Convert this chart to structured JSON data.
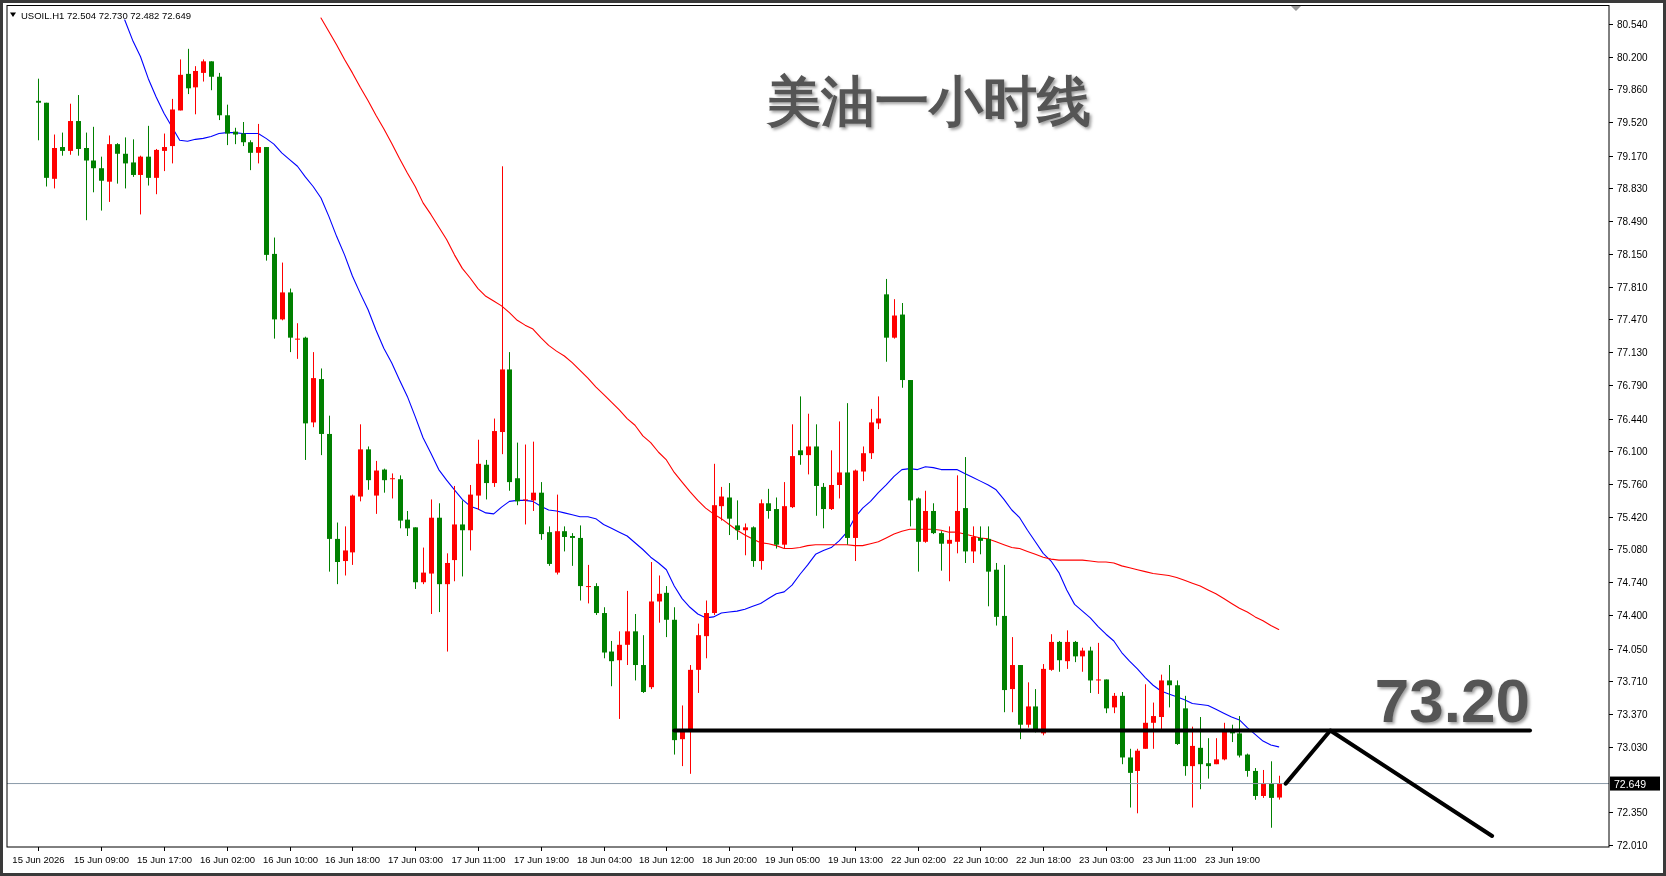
{
  "chart_data": {
    "type": "candlestick",
    "title": "美油一小时线",
    "subtitle": "USOIL.H1 72.504 72.730 72.482 72.649",
    "categories": [
      "15 Jun 2026",
      null,
      null,
      null,
      null,
      null,
      null,
      null,
      "15 Jun 09:00",
      null,
      null,
      null,
      null,
      null,
      null,
      null,
      "15 Jun 17:00",
      null,
      null,
      null,
      null,
      null,
      null,
      null,
      "16 Jun 02:00",
      null,
      null,
      null,
      null,
      null,
      null,
      null,
      "16 Jun 10:00",
      null,
      null,
      null,
      null,
      null,
      null,
      null,
      "16 Jun 18:00",
      null,
      null,
      null,
      null,
      null,
      null,
      null,
      "17 Jun 03:00",
      null,
      null,
      null,
      null,
      null,
      null,
      null,
      "17 Jun 11:00",
      null,
      null,
      null,
      null,
      null,
      null,
      null,
      "17 Jun 19:00",
      null,
      null,
      null,
      null,
      null,
      null,
      null,
      "18 Jun 04:00",
      null,
      null,
      null,
      null,
      null,
      null,
      null,
      "18 Jun 12:00",
      null,
      null,
      null,
      null,
      null,
      null,
      null,
      "18 Jun 20:00",
      null,
      null,
      null,
      null,
      null,
      null,
      null,
      "19 Jun 05:00",
      null,
      null,
      null,
      null,
      null,
      null,
      null,
      "19 Jun 13:00",
      null,
      null,
      null,
      null,
      null,
      null,
      null,
      "22 Jun 02:00",
      null,
      null,
      null,
      null,
      null,
      null,
      null,
      "22 Jun 10:00",
      null,
      null,
      null,
      null,
      null,
      null,
      null,
      "22 Jun 18:00",
      null,
      null,
      null,
      null,
      null,
      null,
      null,
      "23 Jun 03:00",
      null,
      null,
      null,
      null,
      null,
      null,
      null,
      "23 Jun 11:00",
      null,
      null,
      null,
      null,
      null,
      null,
      null,
      "23 Jun 19:00",
      null,
      null,
      null,
      null,
      null,
      null
    ],
    "ylim": [
      71.99,
      80.73
    ],
    "yticks": [
      {
        "value": 80.54,
        "label": "80.540"
      },
      {
        "value": 80.2,
        "label": "80.200"
      },
      {
        "value": 79.86,
        "label": "79.860"
      },
      {
        "value": 79.52,
        "label": "79.520"
      },
      {
        "value": 79.17,
        "label": "79.170"
      },
      {
        "value": 78.83,
        "label": "78.830"
      },
      {
        "value": 78.49,
        "label": "78.490"
      },
      {
        "value": 78.15,
        "label": "78.150"
      },
      {
        "value": 77.81,
        "label": "77.810"
      },
      {
        "value": 77.47,
        "label": "77.470"
      },
      {
        "value": 77.13,
        "label": "77.130"
      },
      {
        "value": 76.79,
        "label": "76.790"
      },
      {
        "value": 76.44,
        "label": "76.440"
      },
      {
        "value": 76.1,
        "label": "76.100"
      },
      {
        "value": 75.76,
        "label": "75.760"
      },
      {
        "value": 75.42,
        "label": "75.420"
      },
      {
        "value": 75.08,
        "label": "75.080"
      },
      {
        "value": 74.74,
        "label": "74.740"
      },
      {
        "value": 74.4,
        "label": "74.400"
      },
      {
        "value": 74.05,
        "label": "74.050"
      },
      {
        "value": 73.71,
        "label": "73.710"
      },
      {
        "value": 73.37,
        "label": "73.370"
      },
      {
        "value": 73.03,
        "label": "73.030"
      },
      {
        "value": 72.35,
        "label": "72.350"
      },
      {
        "value": 72.01,
        "label": "72.010"
      }
    ],
    "ohlc": [
      [
        79.74,
        79.97,
        79.33,
        79.72
      ],
      [
        79.72,
        79.72,
        78.85,
        78.94
      ],
      [
        78.93,
        79.39,
        78.83,
        79.25
      ],
      [
        79.26,
        79.41,
        79.17,
        79.22
      ],
      [
        79.22,
        79.71,
        79.18,
        79.53
      ],
      [
        79.53,
        79.8,
        79.17,
        79.24
      ],
      [
        79.25,
        79.41,
        78.5,
        79.12
      ],
      [
        79.12,
        79.47,
        78.79,
        79.04
      ],
      [
        79.04,
        79.16,
        78.6,
        78.91
      ],
      [
        78.9,
        79.38,
        78.69,
        79.29
      ],
      [
        79.29,
        79.3,
        78.88,
        79.19
      ],
      [
        79.19,
        79.36,
        78.83,
        79.09
      ],
      [
        79.1,
        79.34,
        78.95,
        78.97
      ],
      [
        78.97,
        79.17,
        78.56,
        79.16
      ],
      [
        79.16,
        79.48,
        78.86,
        78.94
      ],
      [
        78.94,
        79.24,
        78.77,
        79.23
      ],
      [
        79.22,
        79.4,
        79.01,
        79.26
      ],
      [
        79.27,
        79.76,
        79.09,
        79.65
      ],
      [
        79.64,
        80.17,
        79.64,
        80.01
      ],
      [
        80.02,
        80.28,
        79.81,
        79.87
      ],
      [
        79.88,
        80.1,
        79.6,
        80.05
      ],
      [
        80.03,
        80.17,
        79.94,
        80.15
      ],
      [
        80.15,
        80.15,
        79.85,
        79.99
      ],
      [
        79.99,
        80.03,
        79.54,
        79.59
      ],
      [
        79.59,
        79.7,
        79.28,
        79.4
      ],
      [
        79.42,
        79.46,
        79.29,
        79.39
      ],
      [
        79.4,
        79.52,
        79.27,
        79.31
      ],
      [
        79.31,
        79.33,
        79.02,
        79.2
      ],
      [
        79.2,
        79.5,
        79.09,
        79.26
      ],
      [
        79.26,
        79.26,
        78.08,
        78.14
      ],
      [
        78.15,
        78.32,
        77.27,
        77.47
      ],
      [
        77.47,
        78.06,
        77.46,
        77.75
      ],
      [
        77.75,
        77.79,
        77.13,
        77.28
      ],
      [
        77.26,
        77.43,
        77.06,
        77.27
      ],
      [
        77.28,
        77.29,
        76.01,
        76.39
      ],
      [
        76.4,
        77.13,
        76.35,
        76.86
      ],
      [
        76.85,
        76.96,
        76.06,
        76.28
      ],
      [
        76.28,
        76.47,
        74.85,
        75.19
      ],
      [
        75.19,
        75.36,
        74.72,
        74.95
      ],
      [
        74.96,
        75.32,
        74.81,
        75.07
      ],
      [
        75.05,
        75.65,
        74.92,
        75.64
      ],
      [
        75.63,
        76.38,
        75.58,
        76.12
      ],
      [
        76.12,
        76.15,
        75.7,
        75.8
      ],
      [
        75.64,
        76.0,
        75.45,
        75.9
      ],
      [
        75.91,
        75.92,
        75.67,
        75.8
      ],
      [
        75.81,
        75.87,
        75.61,
        75.82
      ],
      [
        75.81,
        75.85,
        75.3,
        75.38
      ],
      [
        75.39,
        75.48,
        75.22,
        75.3
      ],
      [
        75.31,
        75.31,
        74.67,
        74.74
      ],
      [
        74.74,
        75.1,
        74.72,
        74.84
      ],
      [
        74.83,
        75.6,
        74.41,
        75.41
      ],
      [
        75.41,
        75.56,
        74.43,
        74.72
      ],
      [
        74.72,
        75.04,
        74.02,
        74.94
      ],
      [
        74.97,
        75.74,
        74.75,
        75.34
      ],
      [
        75.34,
        75.59,
        74.8,
        75.28
      ],
      [
        75.28,
        75.75,
        75.07,
        75.65
      ],
      [
        75.64,
        76.22,
        75.49,
        75.97
      ],
      [
        75.96,
        76.01,
        75.6,
        75.77
      ],
      [
        75.77,
        76.44,
        75.73,
        76.31
      ],
      [
        76.3,
        79.06,
        76.07,
        76.95
      ],
      [
        76.95,
        77.13,
        75.69,
        75.78
      ],
      [
        75.82,
        76.19,
        75.54,
        75.58
      ],
      [
        75.59,
        76.17,
        75.34,
        75.6
      ],
      [
        75.59,
        76.2,
        75.48,
        75.67
      ],
      [
        75.67,
        75.78,
        75.18,
        75.24
      ],
      [
        75.26,
        75.32,
        74.91,
        74.93
      ],
      [
        74.84,
        75.65,
        74.82,
        75.27
      ],
      [
        75.27,
        75.32,
        75.06,
        75.21
      ],
      [
        75.22,
        75.25,
        74.91,
        75.2
      ],
      [
        75.2,
        75.33,
        74.55,
        74.7
      ],
      [
        74.69,
        74.92,
        74.52,
        74.7
      ],
      [
        74.7,
        74.73,
        74.4,
        74.42
      ],
      [
        74.42,
        74.48,
        73.95,
        74.01
      ],
      [
        74.02,
        74.13,
        73.66,
        73.92
      ],
      [
        73.93,
        74.23,
        73.32,
        74.09
      ],
      [
        74.09,
        74.65,
        73.88,
        74.23
      ],
      [
        74.23,
        74.41,
        73.72,
        73.88
      ],
      [
        73.88,
        74.19,
        73.59,
        73.6
      ],
      [
        73.65,
        74.95,
        73.63,
        74.54
      ],
      [
        74.54,
        74.81,
        74.32,
        74.62
      ],
      [
        74.63,
        74.7,
        74.17,
        74.35
      ],
      [
        74.35,
        74.48,
        72.95,
        73.1
      ],
      [
        73.11,
        73.46,
        72.83,
        73.2
      ],
      [
        73.2,
        73.88,
        72.75,
        73.83
      ],
      [
        73.83,
        74.31,
        73.59,
        74.19
      ],
      [
        74.18,
        74.55,
        73.95,
        74.42
      ],
      [
        74.42,
        75.97,
        74.4,
        75.54
      ],
      [
        75.53,
        75.73,
        75.38,
        75.63
      ],
      [
        75.62,
        75.77,
        75.23,
        75.4
      ],
      [
        75.33,
        75.59,
        75.18,
        75.28
      ],
      [
        75.28,
        75.35,
        75.02,
        75.31
      ],
      [
        75.31,
        75.32,
        74.9,
        74.96
      ],
      [
        74.96,
        75.6,
        74.87,
        75.56
      ],
      [
        75.56,
        75.71,
        75.4,
        75.48
      ],
      [
        75.5,
        75.62,
        75.09,
        75.13
      ],
      [
        75.13,
        75.78,
        75.09,
        75.53
      ],
      [
        75.52,
        76.38,
        75.51,
        76.05
      ],
      [
        76.11,
        76.67,
        75.96,
        76.06
      ],
      [
        76.06,
        76.49,
        75.86,
        76.15
      ],
      [
        76.15,
        76.38,
        75.43,
        75.74
      ],
      [
        75.73,
        75.77,
        75.3,
        75.5
      ],
      [
        75.5,
        76.11,
        75.49,
        75.75
      ],
      [
        75.75,
        76.41,
        75.61,
        75.88
      ],
      [
        75.88,
        76.6,
        75.13,
        75.2
      ],
      [
        75.2,
        75.91,
        74.96,
        75.9
      ],
      [
        75.89,
        76.15,
        75.79,
        76.08
      ],
      [
        76.08,
        76.54,
        76.02,
        76.4
      ],
      [
        76.39,
        76.67,
        76.33,
        76.44
      ],
      [
        77.73,
        77.89,
        77.03,
        77.28
      ],
      [
        77.28,
        77.68,
        77.27,
        77.51
      ],
      [
        77.52,
        77.64,
        76.76,
        76.84
      ],
      [
        76.84,
        76.84,
        75.32,
        75.59
      ],
      [
        75.61,
        75.62,
        74.85,
        75.16
      ],
      [
        75.16,
        75.69,
        75.15,
        75.48
      ],
      [
        75.48,
        75.56,
        75.24,
        75.25
      ],
      [
        75.25,
        75.27,
        74.86,
        75.14
      ],
      [
        75.14,
        75.32,
        74.75,
        75.18
      ],
      [
        75.16,
        75.85,
        75.04,
        75.48
      ],
      [
        75.51,
        76.04,
        74.94,
        75.06
      ],
      [
        75.06,
        75.32,
        74.94,
        75.21
      ],
      [
        75.2,
        75.32,
        75.03,
        75.17
      ],
      [
        75.19,
        75.32,
        74.49,
        74.85
      ],
      [
        74.87,
        74.94,
        74.29,
        74.38
      ],
      [
        74.39,
        74.92,
        73.39,
        73.62
      ],
      [
        73.63,
        74.17,
        73.39,
        73.88
      ],
      [
        73.88,
        73.88,
        73.11,
        73.26
      ],
      [
        73.26,
        73.7,
        73.23,
        73.45
      ],
      [
        73.45,
        73.63,
        73.18,
        73.19
      ],
      [
        73.17,
        73.89,
        73.15,
        73.84
      ],
      [
        73.83,
        74.2,
        73.82,
        74.12
      ],
      [
        74.12,
        74.13,
        73.81,
        73.93
      ],
      [
        73.92,
        74.24,
        73.84,
        74.12
      ],
      [
        74.12,
        74.13,
        73.91,
        73.97
      ],
      [
        73.97,
        74.06,
        73.81,
        74.03
      ],
      [
        74.03,
        74.07,
        73.59,
        73.72
      ],
      [
        73.72,
        74.11,
        73.58,
        73.73
      ],
      [
        73.73,
        73.73,
        73.38,
        73.43
      ],
      [
        73.44,
        73.59,
        73.38,
        73.56
      ],
      [
        73.56,
        73.6,
        72.85,
        72.92
      ],
      [
        72.92,
        73.01,
        72.4,
        72.76
      ],
      [
        72.78,
        73.01,
        72.34,
        72.99
      ],
      [
        73.01,
        73.68,
        73.01,
        73.28
      ],
      [
        73.28,
        73.49,
        73.01,
        73.35
      ],
      [
        73.34,
        73.78,
        73.21,
        73.72
      ],
      [
        73.72,
        73.88,
        73.44,
        73.67
      ],
      [
        73.67,
        73.72,
        73.05,
        73.06
      ],
      [
        73.43,
        73.56,
        72.73,
        72.83
      ],
      [
        72.83,
        73.24,
        72.4,
        73.04
      ],
      [
        73.02,
        73.34,
        72.59,
        72.85
      ],
      [
        72.86,
        73.12,
        72.7,
        72.83
      ],
      [
        72.85,
        73.12,
        72.85,
        72.9
      ],
      [
        72.9,
        73.28,
        72.89,
        73.21
      ],
      [
        73.2,
        73.26,
        73.08,
        73.17
      ],
      [
        73.17,
        73.35,
        72.92,
        72.94
      ],
      [
        72.95,
        72.96,
        72.72,
        72.78
      ],
      [
        72.78,
        72.81,
        72.48,
        72.52
      ],
      [
        72.52,
        72.79,
        72.5,
        72.65
      ],
      [
        72.65,
        72.88,
        72.19,
        72.5
      ],
      [
        72.504,
        72.73,
        72.482,
        72.649
      ]
    ],
    "colors": [
      "#008000",
      "#008000",
      "#ff0000",
      "#008000",
      "#ff0000",
      "#008000",
      "#008000",
      "#008000",
      "#008000",
      "#ff0000",
      "#008000",
      "#008000",
      "#008000",
      "#ff0000",
      "#008000",
      "#ff0000",
      "#ff0000",
      "#ff0000",
      "#ff0000",
      "#008000",
      "#ff0000",
      "#ff0000",
      "#008000",
      "#008000",
      "#008000",
      "#008000",
      "#008000",
      "#008000",
      "#ff0000",
      "#008000",
      "#008000",
      "#ff0000",
      "#008000",
      "#ff0000",
      "#008000",
      "#ff0000",
      "#008000",
      "#008000",
      "#008000",
      "#ff0000",
      "#ff0000",
      "#ff0000",
      "#008000",
      "#ff0000",
      "#008000",
      "#ff0000",
      "#008000",
      "#008000",
      "#008000",
      "#ff0000",
      "#ff0000",
      "#008000",
      "#ff0000",
      "#ff0000",
      "#008000",
      "#ff0000",
      "#ff0000",
      "#008000",
      "#ff0000",
      "#ff0000",
      "#008000",
      "#008000",
      "#ff0000",
      "#ff0000",
      "#008000",
      "#008000",
      "#ff0000",
      "#008000",
      "#008000",
      "#008000",
      "#ff0000",
      "#008000",
      "#008000",
      "#008000",
      "#ff0000",
      "#ff0000",
      "#008000",
      "#008000",
      "#ff0000",
      "#ff0000",
      "#008000",
      "#008000",
      "#ff0000",
      "#ff0000",
      "#ff0000",
      "#ff0000",
      "#ff0000",
      "#ff0000",
      "#008000",
      "#008000",
      "#ff0000",
      "#008000",
      "#ff0000",
      "#008000",
      "#008000",
      "#ff0000",
      "#ff0000",
      "#008000",
      "#ff0000",
      "#008000",
      "#008000",
      "#ff0000",
      "#ff0000",
      "#008000",
      "#ff0000",
      "#ff0000",
      "#ff0000",
      "#ff0000",
      "#008000",
      "#ff0000",
      "#008000",
      "#008000",
      "#008000",
      "#ff0000",
      "#008000",
      "#008000",
      "#ff0000",
      "#ff0000",
      "#008000",
      "#ff0000",
      "#008000",
      "#008000",
      "#008000",
      "#008000",
      "#ff0000",
      "#008000",
      "#ff0000",
      "#008000",
      "#ff0000",
      "#ff0000",
      "#008000",
      "#ff0000",
      "#008000",
      "#ff0000",
      "#008000",
      "#ff0000",
      "#008000",
      "#ff0000",
      "#008000",
      "#008000",
      "#ff0000",
      "#ff0000",
      "#ff0000",
      "#ff0000",
      "#008000",
      "#008000",
      "#008000",
      "#ff0000",
      "#008000",
      "#008000",
      "#ff0000",
      "#ff0000",
      "#008000",
      "#008000",
      "#008000",
      "#008000",
      "#ff0000",
      "#008000",
      "#ff0000"
    ],
    "series": [
      {
        "type": "line",
        "color": "#0000ff",
        "values": [
          null,
          null,
          null,
          null,
          null,
          null,
          null,
          null,
          null,
          null,
          null,
          80.58,
          80.37,
          80.2,
          79.97,
          79.78,
          79.61,
          79.47,
          79.33,
          79.32,
          79.34,
          79.35,
          79.37,
          79.4,
          79.41,
          79.41,
          79.4,
          79.4,
          79.4,
          79.35,
          79.29,
          79.2,
          79.13,
          79.06,
          78.95,
          78.85,
          78.73,
          78.54,
          78.33,
          78.14,
          77.92,
          77.74,
          77.57,
          77.36,
          77.17,
          77.02,
          76.84,
          76.67,
          76.46,
          76.24,
          76.08,
          75.91,
          75.8,
          75.7,
          75.6,
          75.53,
          75.5,
          75.46,
          75.45,
          75.52,
          75.58,
          75.59,
          75.59,
          75.58,
          75.53,
          75.49,
          75.48,
          75.46,
          75.44,
          75.42,
          75.42,
          75.4,
          75.34,
          75.3,
          75.26,
          75.22,
          75.15,
          75.08,
          75.0,
          74.94,
          74.87,
          74.7,
          74.57,
          74.48,
          74.41,
          74.37,
          74.38,
          74.42,
          74.43,
          74.44,
          74.46,
          74.49,
          74.52,
          74.57,
          74.62,
          74.64,
          74.71,
          74.82,
          74.92,
          75.03,
          75.07,
          75.1,
          75.17,
          75.26,
          75.41,
          75.51,
          75.58,
          75.67,
          75.75,
          75.84,
          75.91,
          75.92,
          75.91,
          75.94,
          75.93,
          75.91,
          75.91,
          75.91,
          75.87,
          75.83,
          75.79,
          75.75,
          75.7,
          75.6,
          75.49,
          75.41,
          75.28,
          75.16,
          75.04,
          74.96,
          74.84,
          74.66,
          74.51,
          74.44,
          74.37,
          74.28,
          74.2,
          74.13,
          74.01,
          73.92,
          73.84,
          73.75,
          73.67,
          73.61,
          73.58,
          73.55,
          73.52,
          73.48,
          73.47,
          73.46,
          73.42,
          73.38,
          73.34,
          73.31,
          73.23,
          73.16,
          73.09,
          73.05,
          73.03
        ]
      },
      {
        "type": "line",
        "color": "#ff0000",
        "values": [
          null,
          null,
          null,
          null,
          null,
          null,
          null,
          null,
          null,
          null,
          null,
          null,
          null,
          null,
          null,
          null,
          null,
          null,
          null,
          null,
          null,
          null,
          null,
          null,
          null,
          null,
          null,
          null,
          null,
          null,
          null,
          null,
          null,
          null,
          null,
          null,
          80.6,
          80.46,
          80.32,
          80.17,
          80.03,
          79.88,
          79.74,
          79.59,
          79.45,
          79.3,
          79.14,
          78.99,
          78.85,
          78.68,
          78.56,
          78.43,
          78.3,
          78.14,
          78.0,
          77.9,
          77.79,
          77.71,
          77.66,
          77.61,
          77.54,
          77.46,
          77.41,
          77.37,
          77.28,
          77.2,
          77.14,
          77.09,
          77.02,
          76.94,
          76.86,
          76.77,
          76.69,
          76.61,
          76.53,
          76.44,
          76.37,
          76.26,
          76.19,
          76.09,
          76.01,
          75.88,
          75.78,
          75.68,
          75.59,
          75.51,
          75.45,
          75.4,
          75.34,
          75.28,
          75.23,
          75.19,
          75.15,
          75.14,
          75.12,
          75.09,
          75.09,
          75.1,
          75.12,
          75.13,
          75.13,
          75.13,
          75.13,
          75.13,
          75.12,
          75.12,
          75.14,
          75.16,
          75.2,
          75.24,
          75.27,
          75.29,
          75.29,
          75.29,
          75.29,
          75.28,
          75.26,
          75.26,
          75.24,
          75.22,
          75.2,
          75.19,
          75.16,
          75.13,
          75.1,
          75.09,
          75.06,
          75.03,
          75.0,
          74.98,
          74.97,
          74.97,
          74.97,
          74.97,
          74.96,
          74.95,
          74.95,
          74.94,
          74.91,
          74.89,
          74.87,
          74.85,
          74.83,
          74.82,
          74.81,
          74.79,
          74.76,
          74.73,
          74.7,
          74.66,
          74.62,
          74.57,
          74.52,
          74.47,
          74.43,
          74.38,
          74.34,
          74.29,
          74.25
        ]
      }
    ],
    "ref_lines": [
      {
        "axis": "y",
        "value": 73.2,
        "label": "73.20",
        "color": "#000000"
      },
      {
        "axis": "y",
        "value": 72.649,
        "label": "72.649",
        "color": "#8a9aa8"
      }
    ]
  }
}
